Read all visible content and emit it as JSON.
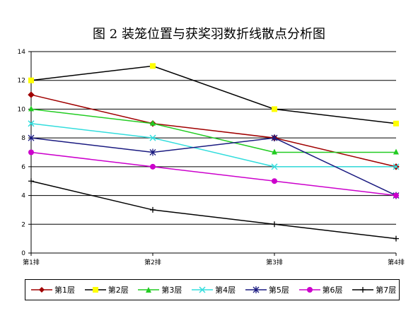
{
  "title": "图 2   装笼位置与获奖羽数折线散点分析图",
  "chart_data": {
    "type": "line",
    "title": "图 2   装笼位置与获奖羽数折线散点分析图",
    "xlabel": "",
    "ylabel": "",
    "categories": [
      "第1排",
      "第2排",
      "第3排",
      "第4排"
    ],
    "ylim": [
      0,
      14
    ],
    "yticks": [
      0,
      2,
      4,
      6,
      8,
      10,
      12,
      14
    ],
    "grid": true,
    "legend_position": "bottom",
    "series": [
      {
        "name": "第1层",
        "values": [
          11,
          9,
          8,
          6
        ],
        "color": "#a00000",
        "marker": "diamond"
      },
      {
        "name": "第2层",
        "values": [
          12,
          13,
          10,
          9
        ],
        "color": "#000000",
        "marker": "square",
        "marker_color": "#ffff00"
      },
      {
        "name": "第3层",
        "values": [
          10,
          9,
          7,
          7
        ],
        "color": "#22cc22",
        "marker": "triangle"
      },
      {
        "name": "第4层",
        "values": [
          9,
          8,
          6,
          6
        ],
        "color": "#33dddd",
        "marker": "x"
      },
      {
        "name": "第5层",
        "values": [
          8,
          7,
          8,
          4
        ],
        "color": "#1a1a80",
        "marker": "star"
      },
      {
        "name": "第6层",
        "values": [
          7,
          6,
          5,
          4
        ],
        "color": "#cc00cc",
        "marker": "circle"
      },
      {
        "name": "第7层",
        "values": [
          5,
          3,
          2,
          1
        ],
        "color": "#000000",
        "marker": "plus"
      }
    ]
  }
}
